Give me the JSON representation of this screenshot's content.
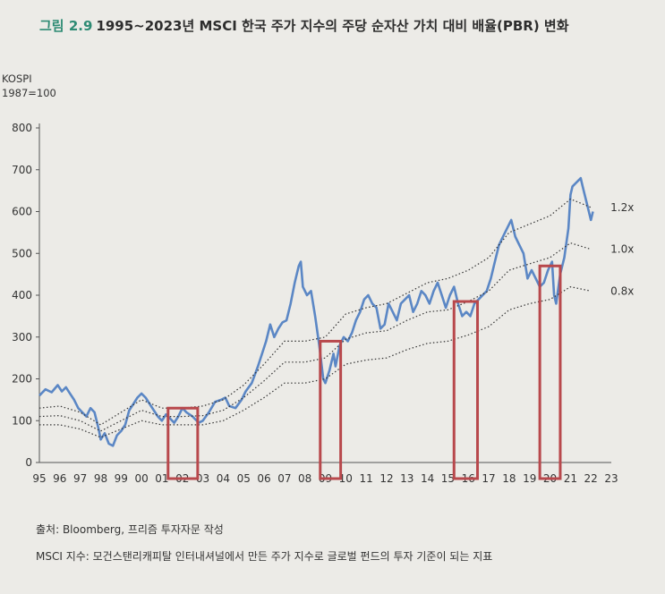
{
  "title": {
    "fig": "그림 2.9",
    "text": "1995~2023년 MSCI 한국 주가 지수의 주당 순자산 가치 대비 배율(PBR) 변화"
  },
  "unit": {
    "line1": "KOSPI",
    "line2": "1987=100"
  },
  "source": "출처: Bloomberg, 프리즘 투자자문 작성",
  "note": "MSCI 지수: 모건스탠리캐피탈 인터내셔널에서 만든 주가 지수로 글로벌 펀드의 투자 기준이 되는 지표",
  "colors": {
    "index": "#5b87c5",
    "bands": "#333333",
    "highlight": "#b8484c",
    "axis": "#555555"
  },
  "chart_data": {
    "type": "line",
    "x_ticks": [
      "95",
      "96",
      "97",
      "98",
      "99",
      "00",
      "01",
      "02",
      "03",
      "04",
      "05",
      "06",
      "07",
      "08",
      "09",
      "10",
      "11",
      "12",
      "13",
      "14",
      "15",
      "16",
      "17",
      "18",
      "19",
      "20",
      "21",
      "22",
      "23"
    ],
    "y_ticks": [
      "0",
      "100",
      "200",
      "300",
      "400",
      "500",
      "600",
      "700",
      "800"
    ],
    "ylim": [
      0,
      800
    ],
    "xlim": [
      1995,
      2023
    ],
    "series": [
      {
        "style": "solid",
        "points": [
          [
            1995.0,
            160
          ],
          [
            1995.3,
            175
          ],
          [
            1995.6,
            168
          ],
          [
            1995.9,
            185
          ],
          [
            1996.1,
            170
          ],
          [
            1996.3,
            180
          ],
          [
            1996.5,
            165
          ],
          [
            1996.7,
            150
          ],
          [
            1996.9,
            130
          ],
          [
            1997.1,
            120
          ],
          [
            1997.3,
            110
          ],
          [
            1997.5,
            130
          ],
          [
            1997.7,
            120
          ],
          [
            1997.9,
            80
          ],
          [
            1998.0,
            55
          ],
          [
            1998.2,
            70
          ],
          [
            1998.4,
            45
          ],
          [
            1998.6,
            40
          ],
          [
            1998.8,
            65
          ],
          [
            1999.0,
            75
          ],
          [
            1999.2,
            90
          ],
          [
            1999.4,
            125
          ],
          [
            1999.6,
            140
          ],
          [
            1999.8,
            155
          ],
          [
            2000.0,
            165
          ],
          [
            2000.2,
            155
          ],
          [
            2000.4,
            140
          ],
          [
            2000.6,
            125
          ],
          [
            2000.8,
            110
          ],
          [
            2001.0,
            100
          ],
          [
            2001.2,
            115
          ],
          [
            2001.4,
            105
          ],
          [
            2001.6,
            95
          ],
          [
            2001.8,
            110
          ],
          [
            2002.0,
            130
          ],
          [
            2002.2,
            120
          ],
          [
            2002.5,
            110
          ],
          [
            2002.8,
            95
          ],
          [
            2003.0,
            100
          ],
          [
            2003.3,
            120
          ],
          [
            2003.6,
            145
          ],
          [
            2003.9,
            150
          ],
          [
            2004.1,
            155
          ],
          [
            2004.3,
            135
          ],
          [
            2004.6,
            130
          ],
          [
            2004.9,
            150
          ],
          [
            2005.1,
            170
          ],
          [
            2005.4,
            190
          ],
          [
            2005.7,
            230
          ],
          [
            2005.9,
            260
          ],
          [
            2006.1,
            290
          ],
          [
            2006.3,
            330
          ],
          [
            2006.5,
            300
          ],
          [
            2006.7,
            320
          ],
          [
            2006.9,
            335
          ],
          [
            2007.1,
            340
          ],
          [
            2007.3,
            380
          ],
          [
            2007.5,
            430
          ],
          [
            2007.7,
            470
          ],
          [
            2007.8,
            480
          ],
          [
            2007.9,
            420
          ],
          [
            2008.1,
            400
          ],
          [
            2008.3,
            410
          ],
          [
            2008.5,
            350
          ],
          [
            2008.7,
            280
          ],
          [
            2008.9,
            200
          ],
          [
            2009.0,
            190
          ],
          [
            2009.2,
            220
          ],
          [
            2009.4,
            260
          ],
          [
            2009.5,
            230
          ],
          [
            2009.7,
            280
          ],
          [
            2009.9,
            300
          ],
          [
            2010.1,
            290
          ],
          [
            2010.3,
            310
          ],
          [
            2010.5,
            340
          ],
          [
            2010.7,
            360
          ],
          [
            2010.9,
            390
          ],
          [
            2011.1,
            400
          ],
          [
            2011.3,
            380
          ],
          [
            2011.5,
            370
          ],
          [
            2011.7,
            320
          ],
          [
            2011.9,
            330
          ],
          [
            2012.1,
            380
          ],
          [
            2012.3,
            360
          ],
          [
            2012.5,
            340
          ],
          [
            2012.7,
            380
          ],
          [
            2012.9,
            390
          ],
          [
            2013.1,
            400
          ],
          [
            2013.3,
            360
          ],
          [
            2013.5,
            380
          ],
          [
            2013.7,
            410
          ],
          [
            2013.9,
            400
          ],
          [
            2014.1,
            380
          ],
          [
            2014.3,
            410
          ],
          [
            2014.5,
            430
          ],
          [
            2014.7,
            400
          ],
          [
            2014.9,
            370
          ],
          [
            2015.1,
            400
          ],
          [
            2015.3,
            420
          ],
          [
            2015.5,
            380
          ],
          [
            2015.7,
            350
          ],
          [
            2015.9,
            360
          ],
          [
            2016.1,
            350
          ],
          [
            2016.3,
            380
          ],
          [
            2016.5,
            390
          ],
          [
            2016.7,
            400
          ],
          [
            2016.9,
            410
          ],
          [
            2017.1,
            440
          ],
          [
            2017.3,
            480
          ],
          [
            2017.5,
            520
          ],
          [
            2017.7,
            540
          ],
          [
            2017.9,
            560
          ],
          [
            2018.1,
            580
          ],
          [
            2018.3,
            540
          ],
          [
            2018.5,
            520
          ],
          [
            2018.7,
            500
          ],
          [
            2018.9,
            440
          ],
          [
            2019.1,
            460
          ],
          [
            2019.3,
            440
          ],
          [
            2019.5,
            420
          ],
          [
            2019.7,
            430
          ],
          [
            2019.9,
            460
          ],
          [
            2020.1,
            480
          ],
          [
            2020.2,
            400
          ],
          [
            2020.3,
            380
          ],
          [
            2020.5,
            450
          ],
          [
            2020.7,
            490
          ],
          [
            2020.9,
            560
          ],
          [
            2021.0,
            640
          ],
          [
            2021.1,
            660
          ],
          [
            2021.3,
            670
          ],
          [
            2021.5,
            680
          ],
          [
            2021.6,
            660
          ],
          [
            2021.7,
            640
          ],
          [
            2021.8,
            620
          ],
          [
            2021.9,
            600
          ],
          [
            2022.0,
            580
          ],
          [
            2022.1,
            600
          ]
        ]
      },
      {
        "name": "1.2x",
        "style": "dotted",
        "points": [
          [
            1995.0,
            130
          ],
          [
            1996.0,
            135
          ],
          [
            1997.0,
            120
          ],
          [
            1998.0,
            90
          ],
          [
            1999.0,
            120
          ],
          [
            2000.0,
            150
          ],
          [
            2001.0,
            130
          ],
          [
            2002.0,
            130
          ],
          [
            2003.0,
            135
          ],
          [
            2004.0,
            150
          ],
          [
            2005.0,
            185
          ],
          [
            2006.0,
            235
          ],
          [
            2007.0,
            290
          ],
          [
            2008.0,
            290
          ],
          [
            2009.0,
            300
          ],
          [
            2010.0,
            355
          ],
          [
            2011.0,
            370
          ],
          [
            2012.0,
            380
          ],
          [
            2013.0,
            405
          ],
          [
            2014.0,
            430
          ],
          [
            2015.0,
            440
          ],
          [
            2016.0,
            460
          ],
          [
            2017.0,
            490
          ],
          [
            2018.0,
            550
          ],
          [
            2019.0,
            570
          ],
          [
            2020.0,
            590
          ],
          [
            2021.0,
            630
          ],
          [
            2022.0,
            610
          ]
        ]
      },
      {
        "name": "1.0x",
        "style": "dotted",
        "points": [
          [
            1995.0,
            110
          ],
          [
            1996.0,
            112
          ],
          [
            1997.0,
            100
          ],
          [
            1998.0,
            75
          ],
          [
            1999.0,
            100
          ],
          [
            2000.0,
            125
          ],
          [
            2001.0,
            110
          ],
          [
            2002.0,
            110
          ],
          [
            2003.0,
            112
          ],
          [
            2004.0,
            125
          ],
          [
            2005.0,
            155
          ],
          [
            2006.0,
            195
          ],
          [
            2007.0,
            240
          ],
          [
            2008.0,
            240
          ],
          [
            2009.0,
            250
          ],
          [
            2010.0,
            295
          ],
          [
            2011.0,
            310
          ],
          [
            2012.0,
            315
          ],
          [
            2013.0,
            340
          ],
          [
            2014.0,
            360
          ],
          [
            2015.0,
            365
          ],
          [
            2016.0,
            385
          ],
          [
            2017.0,
            410
          ],
          [
            2018.0,
            460
          ],
          [
            2019.0,
            475
          ],
          [
            2020.0,
            490
          ],
          [
            2021.0,
            525
          ],
          [
            2022.0,
            510
          ]
        ]
      },
      {
        "name": "0.8x",
        "style": "dotted",
        "points": [
          [
            1995.0,
            90
          ],
          [
            1996.0,
            90
          ],
          [
            1997.0,
            80
          ],
          [
            1998.0,
            60
          ],
          [
            1999.0,
            80
          ],
          [
            2000.0,
            100
          ],
          [
            2001.0,
            90
          ],
          [
            2002.0,
            90
          ],
          [
            2003.0,
            90
          ],
          [
            2004.0,
            100
          ],
          [
            2005.0,
            125
          ],
          [
            2006.0,
            155
          ],
          [
            2007.0,
            190
          ],
          [
            2008.0,
            190
          ],
          [
            2009.0,
            200
          ],
          [
            2010.0,
            235
          ],
          [
            2011.0,
            245
          ],
          [
            2012.0,
            250
          ],
          [
            2013.0,
            270
          ],
          [
            2014.0,
            285
          ],
          [
            2015.0,
            290
          ],
          [
            2016.0,
            305
          ],
          [
            2017.0,
            325
          ],
          [
            2018.0,
            365
          ],
          [
            2019.0,
            380
          ],
          [
            2020.0,
            390
          ],
          [
            2021.0,
            420
          ],
          [
            2022.0,
            410
          ]
        ]
      }
    ],
    "highlights": [
      {
        "label": "02",
        "x0": 2001.3,
        "x1": 2002.75,
        "y0": 0,
        "y1": 130
      },
      {
        "label": "09",
        "x0": 2008.75,
        "x1": 2009.75,
        "y0": 0,
        "y1": 290
      },
      {
        "label": "16",
        "x0": 2015.3,
        "x1": 2016.45,
        "y0": 0,
        "y1": 385
      },
      {
        "label": "20",
        "x0": 2019.5,
        "x1": 2020.5,
        "y0": 0,
        "y1": 470
      }
    ]
  }
}
